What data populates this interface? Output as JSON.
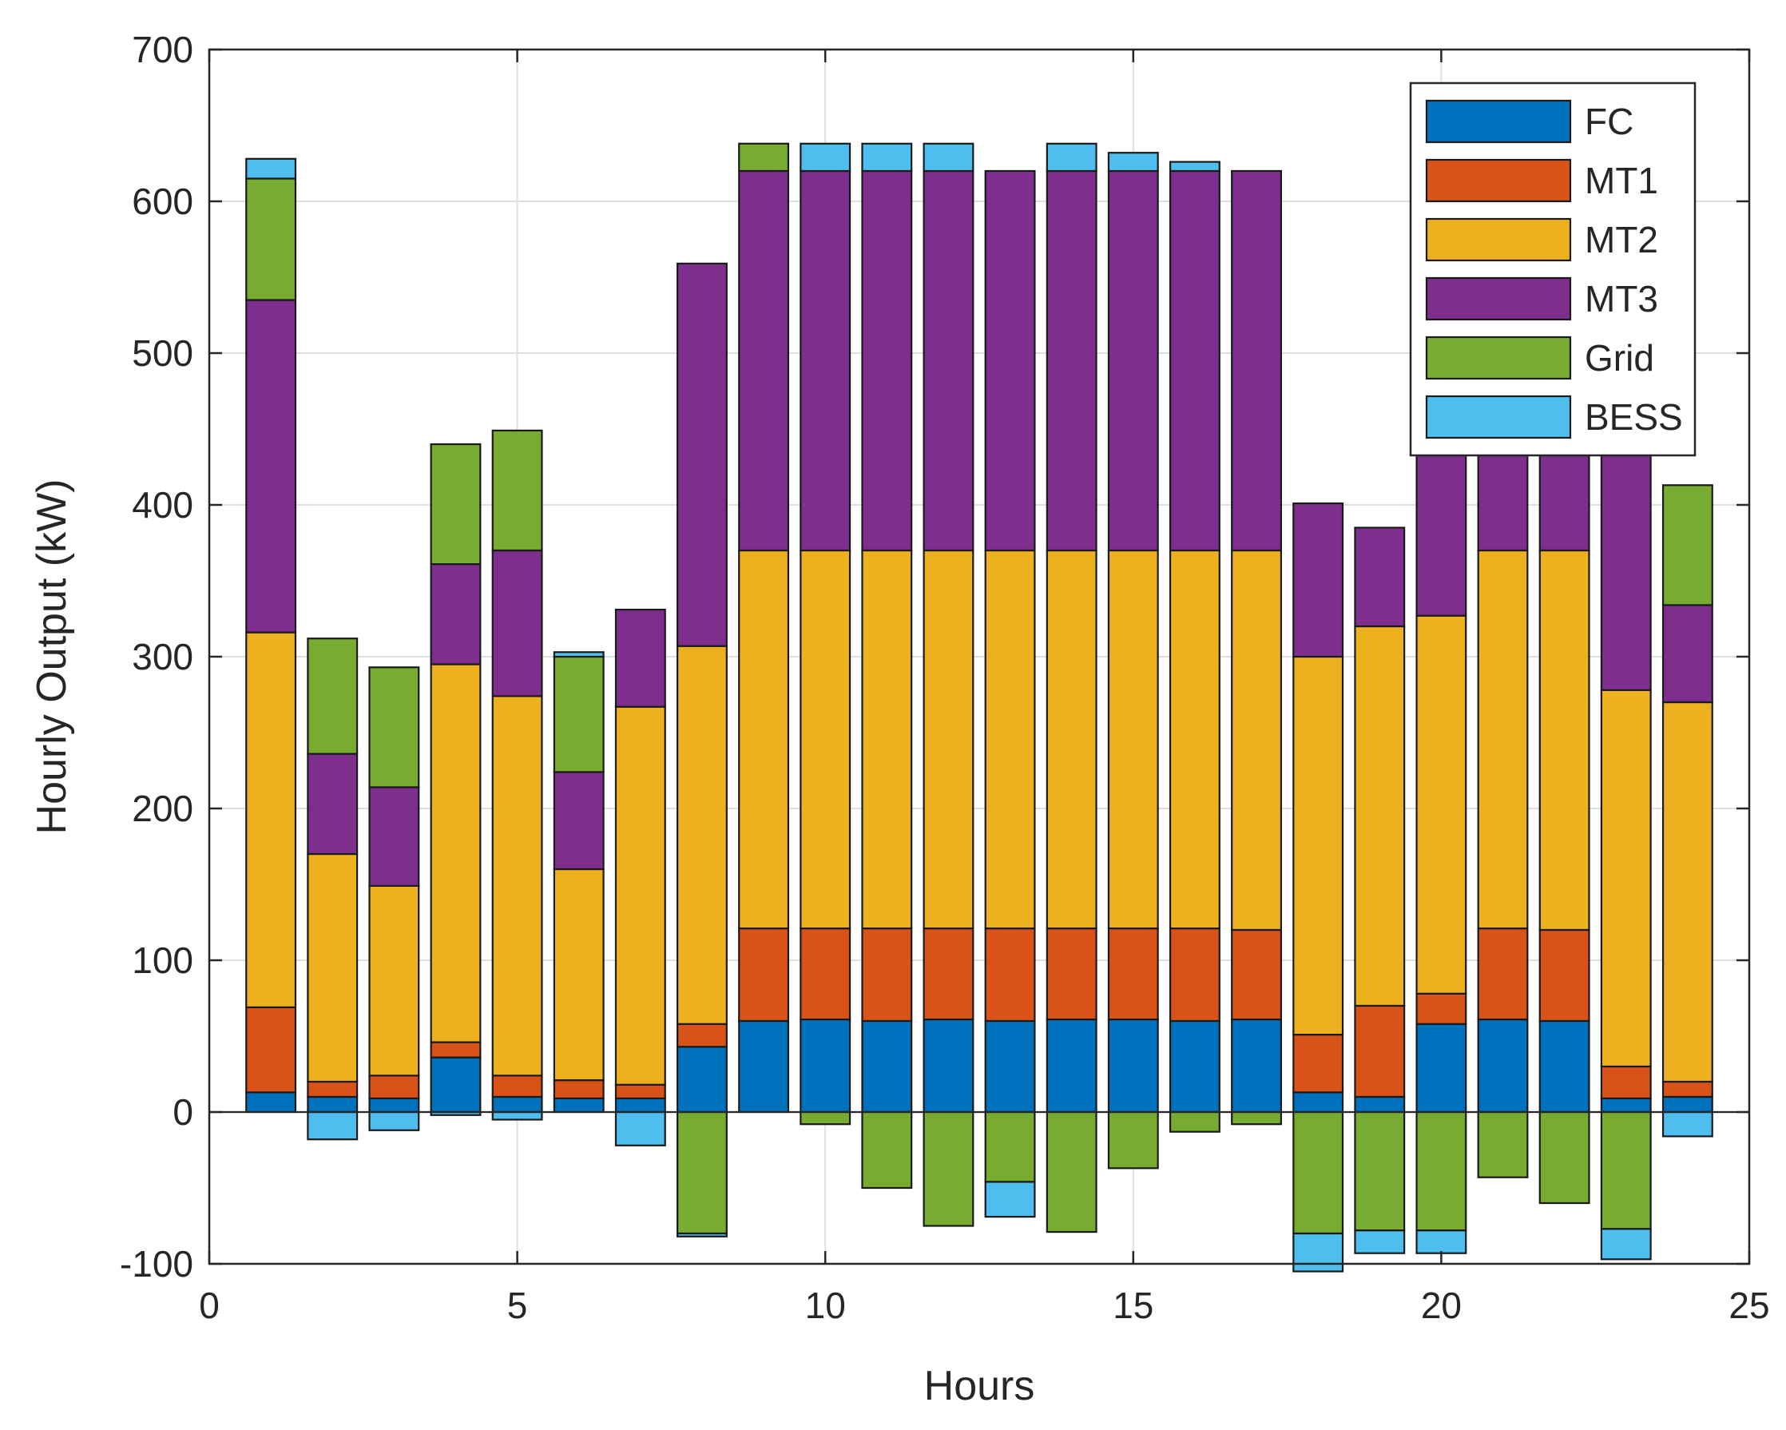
{
  "chart_data": {
    "type": "bar",
    "stacked": true,
    "xlabel": "Hours",
    "ylabel": "Hourly Output (kW)",
    "xlim": [
      0,
      25
    ],
    "ylim": [
      -100,
      700
    ],
    "xticks": [
      0,
      5,
      10,
      15,
      20,
      25
    ],
    "yticks": [
      -100,
      0,
      100,
      200,
      300,
      400,
      500,
      600,
      700
    ],
    "grid": true,
    "legend_position": "top-right",
    "x": [
      1,
      2,
      3,
      4,
      5,
      6,
      7,
      8,
      9,
      10,
      11,
      12,
      13,
      14,
      15,
      16,
      17,
      18,
      19,
      20,
      21,
      22,
      23,
      24
    ],
    "series": [
      {
        "name": "FC",
        "color": "#0072BD",
        "values": [
          13,
          10,
          9,
          36,
          10,
          9,
          9,
          43,
          60,
          61,
          60,
          61,
          60,
          61,
          61,
          60,
          61,
          13,
          10,
          58,
          61,
          60,
          9,
          10
        ]
      },
      {
        "name": "MT1",
        "color": "#D95319",
        "values": [
          56,
          10,
          15,
          10,
          14,
          12,
          9,
          15,
          61,
          60,
          61,
          60,
          61,
          60,
          60,
          61,
          59,
          38,
          60,
          20,
          60,
          60,
          21,
          10
        ]
      },
      {
        "name": "MT2",
        "color": "#EDB120",
        "values": [
          247,
          150,
          125,
          249,
          250,
          139,
          249,
          249,
          249,
          249,
          249,
          249,
          249,
          249,
          249,
          249,
          250,
          249,
          250,
          249,
          249,
          250,
          248,
          250
        ]
      },
      {
        "name": "MT3",
        "color": "#7E2F8E",
        "values": [
          219,
          66,
          65,
          66,
          96,
          64,
          64,
          252,
          250,
          250,
          250,
          250,
          250,
          250,
          250,
          250,
          250,
          101,
          65,
          220,
          250,
          250,
          168,
          64
        ]
      },
      {
        "name": "Grid",
        "color": "#77AC30",
        "values": [
          80,
          76,
          79,
          79,
          79,
          76,
          0,
          -80,
          18,
          -8,
          -50,
          -75,
          -46,
          -79,
          -37,
          -13,
          -8,
          -80,
          -78,
          -78,
          -43,
          -60,
          -77,
          79
        ]
      },
      {
        "name": "BESS",
        "color": "#4DBEEE",
        "values": [
          13,
          -18,
          -12,
          -2,
          -5,
          3,
          -22,
          -2,
          0,
          18,
          18,
          18,
          -23,
          18,
          12,
          6,
          0,
          -25,
          -15,
          -15,
          0,
          0,
          -20,
          -16
        ]
      }
    ]
  }
}
